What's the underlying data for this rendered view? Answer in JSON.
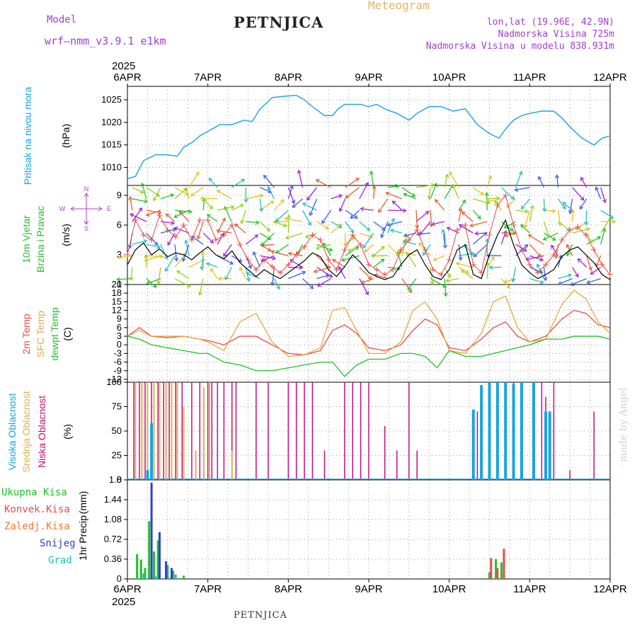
{
  "header": {
    "model_label": "Model",
    "model_name": "wrf–nmm_v3.9.1  e1km",
    "station": "PETNJICA",
    "meteogram": "Meteogram",
    "lonlat": "lon,lat (19.96E, 42.9N)",
    "elevation": "Nadmorska Visina 725m",
    "model_elevation": "Nadmorska Visina u modelu 838.931m",
    "footer_station": "PETNJICA",
    "credit": "made by Angel"
  },
  "colors": {
    "pressure": "#1aa3e0",
    "wind_label": "#22c02a",
    "temp2m": "#e84a4a",
    "sfc_temp": "#e8a83a",
    "dewpt": "#22c02a",
    "high_cloud": "#1aa3e0",
    "mid_cloud": "#e0b050",
    "low_cloud": "#c0107a",
    "total_precip": "#22c02a",
    "conv_precip": "#e84a4a",
    "freezing": "#f07a30",
    "snow": "#3040d0",
    "graupel": "#20c0b0"
  },
  "chart_data": [
    {
      "type": "line",
      "panel": "pressure",
      "ylabel": "Pritisak na nivou mora",
      "unit": "(hPa)",
      "x_ticks": [
        "6APR",
        "7APR",
        "8APR",
        "9APR",
        "10APR",
        "11APR",
        "12APR"
      ],
      "year": "2025",
      "ylim": [
        1006,
        1028
      ],
      "y_ticks": [
        1010,
        1015,
        1020,
        1025
      ],
      "grid": true,
      "series": [
        {
          "name": "",
          "x": [
            0,
            0.1,
            0.2,
            0.35,
            0.5,
            0.62,
            0.7,
            0.8,
            0.9,
            1.0,
            1.15,
            1.3,
            1.45,
            1.55,
            1.65,
            1.8,
            1.95,
            2.1,
            2.2,
            2.3,
            2.45,
            2.55,
            2.62,
            2.7,
            2.8,
            2.9,
            3.0,
            3.1,
            3.2,
            3.35,
            3.5,
            3.6,
            3.75,
            3.9,
            4.05,
            4.2,
            4.35,
            4.5,
            4.62,
            4.7,
            4.8,
            4.9,
            5.0,
            5.15,
            5.3,
            5.4,
            5.5,
            5.65,
            5.8,
            5.9,
            6.0
          ],
          "y": [
            1007.5,
            1008,
            1011.5,
            1012.8,
            1012.8,
            1012.5,
            1014.5,
            1015.5,
            1017,
            1018,
            1019.5,
            1019.5,
            1020.5,
            1020.2,
            1023,
            1025.5,
            1025.8,
            1026,
            1025,
            1023.5,
            1021.5,
            1021.5,
            1023,
            1024,
            1024,
            1024,
            1023.5,
            1024,
            1023,
            1022,
            1020.5,
            1022,
            1023.5,
            1023.5,
            1022.5,
            1023,
            1019.5,
            1017.5,
            1016.5,
            1018.5,
            1020.5,
            1021.5,
            1022,
            1022.5,
            1022.5,
            1021,
            1019,
            1016.5,
            1015,
            1016.5,
            1017
          ]
        }
      ]
    },
    {
      "type": "line",
      "panel": "wind",
      "ylabel": "10m Vjetar",
      "ylabel2": "Brzina i Pravac",
      "unit": "(m/s)",
      "compass": [
        "N",
        "E",
        "S",
        "W"
      ],
      "ylim": [
        0,
        10
      ],
      "y_ticks": [
        0,
        3,
        6,
        9
      ],
      "grid": true,
      "series": [
        {
          "name": "",
          "x": [
            0,
            0.1,
            0.2,
            0.3,
            0.4,
            0.5,
            0.6,
            0.7,
            0.8,
            0.9,
            1.0,
            1.1,
            1.2,
            1.3,
            1.4,
            1.5,
            1.6,
            1.7,
            1.8,
            1.9,
            2.0,
            2.1,
            2.2,
            2.3,
            2.4,
            2.5,
            2.6,
            2.7,
            2.8,
            2.9,
            3.0,
            3.1,
            3.2,
            3.3,
            3.4,
            3.5,
            3.6,
            3.7,
            3.8,
            3.9,
            4.0,
            4.1,
            4.2,
            4.3,
            4.4,
            4.5,
            4.6,
            4.7,
            4.8,
            4.9,
            5.0,
            5.1,
            5.2,
            5.3,
            5.4,
            5.5,
            5.6,
            5.7,
            5.8,
            5.9,
            6.0
          ],
          "y": [
            2.0,
            3.5,
            4.2,
            3.0,
            3.6,
            2.8,
            3.2,
            3.0,
            2.5,
            3.2,
            3.8,
            3.0,
            2.6,
            3.4,
            2.2,
            1.5,
            0.8,
            1.5,
            1.0,
            0.6,
            1.2,
            1.8,
            2.4,
            3.2,
            2.8,
            1.5,
            0.8,
            1.8,
            3.0,
            2.2,
            1.2,
            0.8,
            0.5,
            0.8,
            2.0,
            3.0,
            3.5,
            2.0,
            0.8,
            0.5,
            1.5,
            3.5,
            4.0,
            1.0,
            0.6,
            3.0,
            5.0,
            6.5,
            4.0,
            2.0,
            1.2,
            0.6,
            1.0,
            1.5,
            2.8,
            3.5,
            3.8,
            3.0,
            2.2,
            1.0,
            0.5
          ]
        },
        {
          "name": "",
          "x": [
            0,
            0.1,
            0.2,
            0.3,
            0.4,
            0.5,
            0.6,
            0.7,
            0.8,
            0.9,
            1.0,
            1.1,
            1.2,
            1.3,
            1.4,
            1.5,
            1.6,
            1.7,
            1.8,
            1.9,
            2.0,
            2.1,
            2.2,
            2.3,
            2.4,
            2.5,
            2.6,
            2.7,
            2.8,
            2.9,
            3.0,
            3.1,
            3.2,
            3.3,
            3.4,
            3.5,
            3.6,
            3.7,
            3.8,
            3.9,
            4.0,
            4.1,
            4.2,
            4.3,
            4.4,
            4.5,
            4.6,
            4.7,
            4.8,
            4.9,
            5.0,
            5.1,
            5.2,
            5.3,
            5.4,
            5.5,
            5.6,
            5.7,
            5.8,
            5.9,
            6.0
          ],
          "y": [
            3.0,
            6.5,
            5.0,
            4.5,
            7.0,
            5.5,
            4.8,
            6.0,
            4.5,
            6.5,
            6.5,
            4.5,
            5.0,
            6.0,
            4.0,
            2.5,
            1.5,
            2.5,
            1.8,
            1.2,
            2.0,
            3.0,
            3.8,
            5.0,
            4.5,
            2.5,
            1.5,
            3.5,
            5.0,
            4.0,
            2.0,
            1.5,
            1.0,
            1.5,
            3.5,
            4.5,
            5.5,
            3.5,
            1.5,
            1.0,
            2.5,
            5.5,
            6.0,
            2.0,
            1.2,
            5.0,
            8.0,
            9.0,
            6.0,
            3.5,
            2.0,
            1.2,
            2.0,
            3.0,
            4.5,
            5.5,
            5.8,
            5.0,
            3.5,
            2.0,
            1.0
          ]
        }
      ]
    },
    {
      "type": "line",
      "panel": "temperature",
      "ylabel": "2m Temp",
      "ylabel2": "SFC Temp",
      "ylabel3": "dewpt Temp",
      "unit": "(C)",
      "ylim": [
        -13,
        21
      ],
      "y_ticks": [
        -12,
        -9,
        -6,
        -3,
        0,
        3,
        6,
        9,
        12,
        15,
        18,
        21
      ],
      "grid": true,
      "series": [
        {
          "name": "2m Temp",
          "x": [
            0,
            0.15,
            0.3,
            0.5,
            0.7,
            0.9,
            1.0,
            1.2,
            1.4,
            1.6,
            1.8,
            2.0,
            2.2,
            2.4,
            2.55,
            2.7,
            2.85,
            3.0,
            3.2,
            3.4,
            3.55,
            3.7,
            3.85,
            4.0,
            4.2,
            4.4,
            4.55,
            4.7,
            4.85,
            5.0,
            5.2,
            5.4,
            5.55,
            5.7,
            5.85,
            6.0
          ],
          "y": [
            3,
            6,
            3,
            2.5,
            3,
            2,
            1.5,
            0,
            3,
            3,
            0,
            -3,
            -3.5,
            -2,
            5,
            7,
            4,
            -1,
            -2,
            0,
            5,
            9,
            7,
            -1,
            -2,
            2,
            6,
            8,
            3,
            1,
            3,
            9,
            12,
            11,
            7,
            6
          ]
        },
        {
          "name": "SFC Temp",
          "x": [
            0,
            0.15,
            0.3,
            0.5,
            0.7,
            0.9,
            1.0,
            1.2,
            1.4,
            1.6,
            1.8,
            2.0,
            2.2,
            2.4,
            2.55,
            2.7,
            2.85,
            3.0,
            3.2,
            3.4,
            3.55,
            3.7,
            3.85,
            4.0,
            4.2,
            4.4,
            4.55,
            4.7,
            4.85,
            5.0,
            5.2,
            5.4,
            5.55,
            5.7,
            5.85,
            6.0
          ],
          "y": [
            3,
            5,
            3,
            3,
            3,
            2,
            1,
            -2,
            8,
            11,
            1,
            -4,
            -3.5,
            -1,
            12,
            13,
            5,
            -3,
            -3,
            1,
            12,
            15,
            9,
            -2,
            -3,
            4,
            15,
            17,
            6,
            1,
            2,
            14,
            19,
            16,
            8,
            4
          ]
        },
        {
          "name": "dewpt Temp",
          "x": [
            0,
            0.15,
            0.3,
            0.5,
            0.7,
            0.9,
            1.0,
            1.2,
            1.4,
            1.6,
            1.8,
            2.0,
            2.2,
            2.4,
            2.55,
            2.7,
            2.85,
            3.0,
            3.2,
            3.4,
            3.55,
            3.7,
            3.85,
            4.0,
            4.2,
            4.4,
            4.55,
            4.7,
            4.85,
            5.0,
            5.2,
            5.4,
            5.55,
            5.7,
            5.85,
            6.0
          ],
          "y": [
            3,
            2,
            0,
            -1,
            -2,
            -3,
            -3,
            -6,
            -7,
            -9,
            -9,
            -8,
            -7,
            -6,
            -6,
            -11,
            -7,
            -5,
            -5,
            -3,
            -3,
            -4,
            -8,
            -2,
            -4,
            -4,
            -3,
            -2,
            -1,
            0,
            2,
            2,
            3,
            3,
            3,
            2
          ]
        }
      ]
    },
    {
      "type": "bar",
      "panel": "clouds",
      "ylabel": "Visoka Oblacnost",
      "ylabel2": "Srednja Oblacnost",
      "ylabel3": "Niska Oblacnost",
      "unit": "(%)",
      "ylim": [
        0,
        100
      ],
      "y_ticks": [
        0,
        25,
        50,
        75,
        100
      ],
      "grid": true,
      "series": [
        {
          "name": "Niska Oblacnost",
          "x": [
            0.08,
            0.15,
            0.22,
            0.3,
            0.38,
            0.45,
            0.52,
            0.6,
            0.68,
            0.8,
            0.9,
            1.0,
            1.05,
            1.12,
            1.2,
            1.3,
            1.35,
            1.6,
            1.75,
            2.0,
            2.1,
            2.2,
            2.3,
            2.45,
            2.7,
            2.8,
            2.9,
            3.0,
            3.2,
            3.35,
            3.5,
            3.6,
            4.35,
            4.6,
            4.8,
            5.05,
            5.15,
            5.2,
            5.3,
            5.5,
            5.8
          ],
          "y": [
            100,
            100,
            100,
            100,
            100,
            100,
            100,
            100,
            100,
            100,
            100,
            100,
            100,
            100,
            100,
            100,
            100,
            100,
            100,
            100,
            100,
            100,
            100,
            30,
            100,
            100,
            100,
            100,
            55,
            30,
            100,
            30,
            70,
            100,
            100,
            100,
            100,
            85,
            100,
            10,
            70
          ]
        },
        {
          "name": "Srednja Oblacnost",
          "x": [
            0.1,
            0.18,
            0.25,
            0.33,
            0.4,
            0.48,
            0.55,
            0.62,
            0.7,
            0.85,
            0.95,
            1.02,
            1.3
          ],
          "y": [
            100,
            100,
            100,
            100,
            100,
            100,
            100,
            100,
            75,
            30,
            95,
            100,
            30
          ]
        },
        {
          "name": "Visoka Oblacnost",
          "x": [
            0.25,
            0.3,
            4.3,
            4.4,
            4.5,
            4.6,
            4.7,
            4.8,
            4.9,
            5.05,
            5.2,
            5.25
          ],
          "y": [
            10,
            58,
            72,
            97,
            100,
            100,
            100,
            98,
            100,
            100,
            70,
            70
          ]
        }
      ]
    },
    {
      "type": "bar",
      "panel": "precip",
      "ylabel": "1hr Precip",
      "unit": "(mm)",
      "ylim": [
        0,
        1.8
      ],
      "y_ticks": [
        0,
        0.36,
        0.72,
        1.08,
        1.44,
        1.8
      ],
      "grid": true,
      "legend": [
        "Ukupna  Kisa",
        "Konvek.Kisa",
        "Zaledj.Kisa",
        "Snijeg",
        "Grad"
      ],
      "series": [
        {
          "name": "Ukupna  Kisa",
          "x": [
            0.12,
            0.17,
            0.22,
            0.27,
            0.33,
            0.38,
            0.5,
            0.57,
            0.7,
            4.5,
            4.58,
            4.65
          ],
          "y": [
            0.45,
            0.35,
            0.2,
            1.05,
            0.5,
            0.7,
            0.25,
            0.15,
            0.06,
            0.12,
            0.36,
            0.3
          ]
        },
        {
          "name": "Snijeg",
          "x": [
            0.3,
            0.4,
            0.48,
            0.55
          ],
          "y": [
            1.75,
            0.85,
            0.32,
            0.2
          ]
        },
        {
          "name": "Konvek.Kisa",
          "x": [
            4.52,
            4.6,
            4.68
          ],
          "y": [
            0.38,
            0.2,
            0.55
          ]
        },
        {
          "name": "Grad",
          "x": [
            0.2,
            0.35,
            0.6
          ],
          "y": [
            0.1,
            0.05,
            0.08
          ]
        }
      ]
    }
  ]
}
